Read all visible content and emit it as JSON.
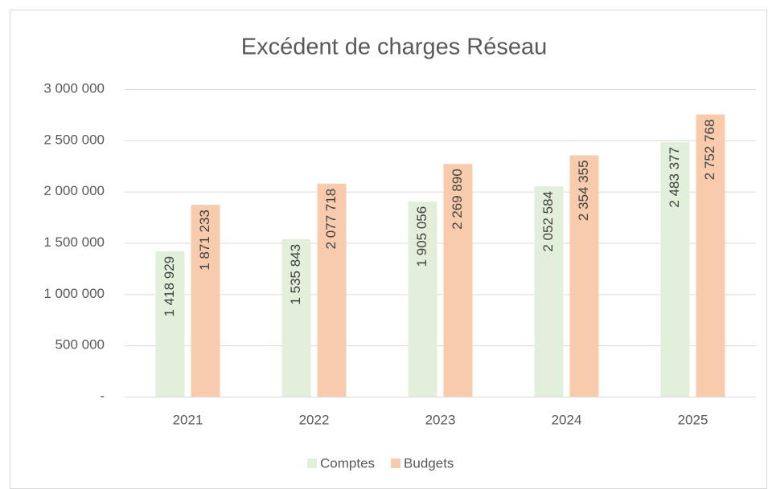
{
  "chart_data": {
    "type": "bar",
    "title": "Excédent de charges Réseau",
    "categories": [
      "2021",
      "2022",
      "2023",
      "2024",
      "2025"
    ],
    "series": [
      {
        "name": "Comptes",
        "color": "#e2efda",
        "values": [
          1418929,
          1535843,
          1905056,
          2052584,
          2483377
        ],
        "value_labels": [
          "1 418 929",
          "1 535 843",
          "1 905 056",
          "2 052 584",
          "2 483 377"
        ]
      },
      {
        "name": "Budgets",
        "color": "#f8cbad",
        "values": [
          1871233,
          2077718,
          2269890,
          2354355,
          2752768
        ],
        "value_labels": [
          "1 871 233",
          "2 077 718",
          "2 269 890",
          "2 354 355",
          "2 752 768"
        ]
      }
    ],
    "ylim": [
      0,
      3000000
    ],
    "yticks": [
      {
        "value": 0,
        "label": "-"
      },
      {
        "value": 500000,
        "label": "500 000"
      },
      {
        "value": 1000000,
        "label": "1 000 000"
      },
      {
        "value": 1500000,
        "label": "1 500 000"
      },
      {
        "value": 2000000,
        "label": "2 000 000"
      },
      {
        "value": 2500000,
        "label": "2 500 000"
      },
      {
        "value": 3000000,
        "label": "3 000 000"
      }
    ],
    "grid": true,
    "legend": "bottom"
  }
}
